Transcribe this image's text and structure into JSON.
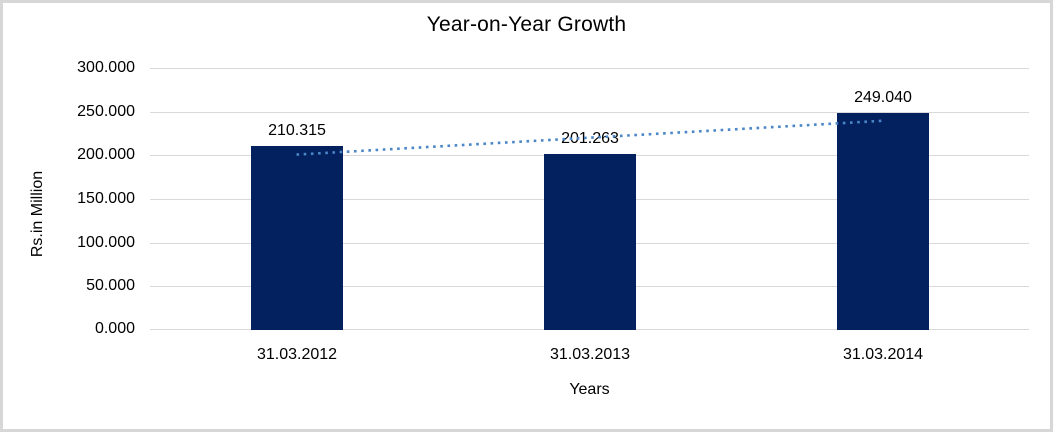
{
  "chart_data": {
    "type": "bar",
    "title": "Year-on-Year Growth",
    "xlabel": "Years",
    "ylabel": "Rs.in Million",
    "categories": [
      "31.03.2012",
      "31.03.2013",
      "31.03.2014"
    ],
    "values": [
      210.315,
      201.263,
      249.04
    ],
    "value_labels": [
      "210.315",
      "201.263",
      "249.040"
    ],
    "ylim": [
      0,
      300
    ],
    "yticks": [
      {
        "value": 300,
        "label": "300.000"
      },
      {
        "value": 250,
        "label": "250.000"
      },
      {
        "value": 200,
        "label": "200.000"
      },
      {
        "value": 150,
        "label": "150.000"
      },
      {
        "value": 100,
        "label": "100.000"
      },
      {
        "value": 50,
        "label": "50.000"
      },
      {
        "value": 0,
        "label": "0.000"
      }
    ],
    "grid": true,
    "legend": false,
    "trendline": {
      "type": "linear",
      "style": "dotted"
    },
    "colors": {
      "bar": "#03215f",
      "trendline": "#4a86c8",
      "gridline": "#d9d9d9",
      "text": "#000000",
      "frame_border": "#d7d7d7",
      "background": "#ffffff"
    }
  }
}
